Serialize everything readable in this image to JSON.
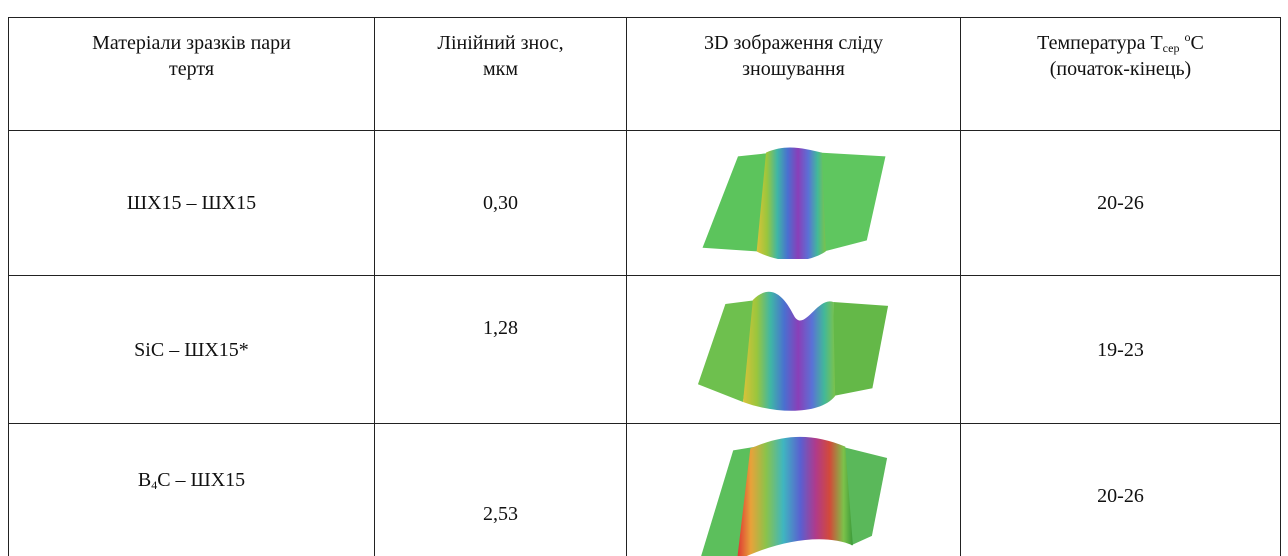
{
  "table": {
    "header": [
      {
        "lines": [
          "Матеріали зразків пари",
          "тертя"
        ]
      },
      {
        "lines": [
          "Лінійний знос,",
          "мкм"
        ]
      },
      {
        "lines": [
          "3D зображення сліду",
          "зношування"
        ]
      },
      {
        "line1": {
          "text": "Температура T",
          "sub": "сер",
          "sup": "o",
          "unit": "C"
        },
        "line2": "(початок-кінець)"
      }
    ],
    "rows": [
      {
        "material": [
          {
            "text": "ШХ15 – ШХ15"
          }
        ],
        "wear": "0,30",
        "temp": "20-26"
      },
      {
        "material": [
          {
            "text": "SiC – ШХ15*"
          }
        ],
        "wear": "1,28",
        "temp": "19-23"
      },
      {
        "material": [
          {
            "text": "B"
          },
          {
            "sub": "4"
          },
          {
            "text": "C – ШХ15"
          }
        ],
        "wear": "2,53",
        "temp": "20-26"
      }
    ]
  }
}
